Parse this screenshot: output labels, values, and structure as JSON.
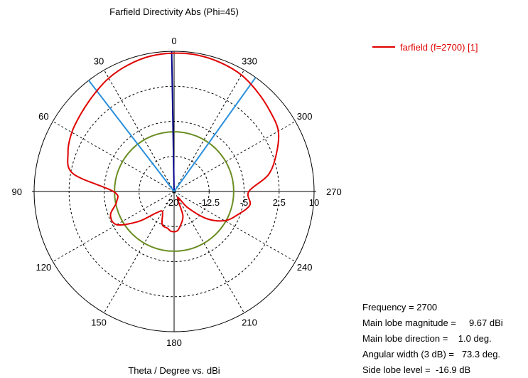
{
  "chart_data": {
    "type": "polar",
    "title": "Farfield Directivity Abs (Phi=45)",
    "xlabel": "Theta / Degree vs. dBi",
    "angle_ticks": [
      "0",
      "30",
      "60",
      "90",
      "120",
      "150",
      "180",
      "210",
      "240",
      "270",
      "300",
      "330"
    ],
    "angle_direction": "counterclockwise",
    "radial_ticks": [
      "-20",
      "-12.5",
      "-5",
      "2.5",
      "10"
    ],
    "radial_range": [
      -20,
      10
    ],
    "grid": true,
    "legend_position": "top-right",
    "series": [
      {
        "name": "farfield (f=2700) [1]",
        "color": "#e00000",
        "theta": [
          0,
          10,
          20,
          30,
          40,
          50,
          60,
          70,
          80,
          90,
          100,
          110,
          120,
          130,
          140,
          150,
          160,
          170,
          175,
          180,
          185,
          190,
          200,
          210,
          220,
          230,
          240,
          250,
          260,
          270,
          280,
          290,
          300,
          310,
          320,
          330,
          340,
          350
        ],
        "values": [
          9.6,
          9.4,
          8.8,
          8.0,
          6.9,
          6.0,
          5.3,
          4.2,
          2.0,
          -7.0,
          -7.5,
          -5.5,
          -5.8,
          -10.0,
          -14.0,
          -15.0,
          -12.5,
          -12.0,
          -11.5,
          -11.4,
          -11.6,
          -12.5,
          -14.5,
          -18.5,
          -15.5,
          -11.0,
          -7.5,
          -5.5,
          -3.5,
          -4.0,
          0.5,
          3.3,
          5.8,
          6.8,
          7.8,
          8.8,
          9.3,
          9.6
        ]
      }
    ],
    "reference_lines": [
      {
        "label": "main lobe direction",
        "theta": 1.0,
        "color": "#00008b"
      },
      {
        "label": "3 dB beamwidth edge",
        "theta": 37.6,
        "color": "#2a8fdc"
      },
      {
        "label": "3 dB beamwidth edge",
        "theta": 324.4,
        "color": "#2a8fdc"
      }
    ],
    "reference_circle": {
      "label": "side lobe level",
      "value": -7.23,
      "color": "#6b8e23"
    }
  },
  "info": {
    "frequency": "Frequency = 2700",
    "magnitude": "Main lobe magnitude =     9.67 dBi",
    "direction": "Main lobe direction =    1.0 deg.",
    "width": "Angular width (3 dB) =   73.3 deg.",
    "sidelobe": "Side lobe level =  -16.9 dB"
  }
}
